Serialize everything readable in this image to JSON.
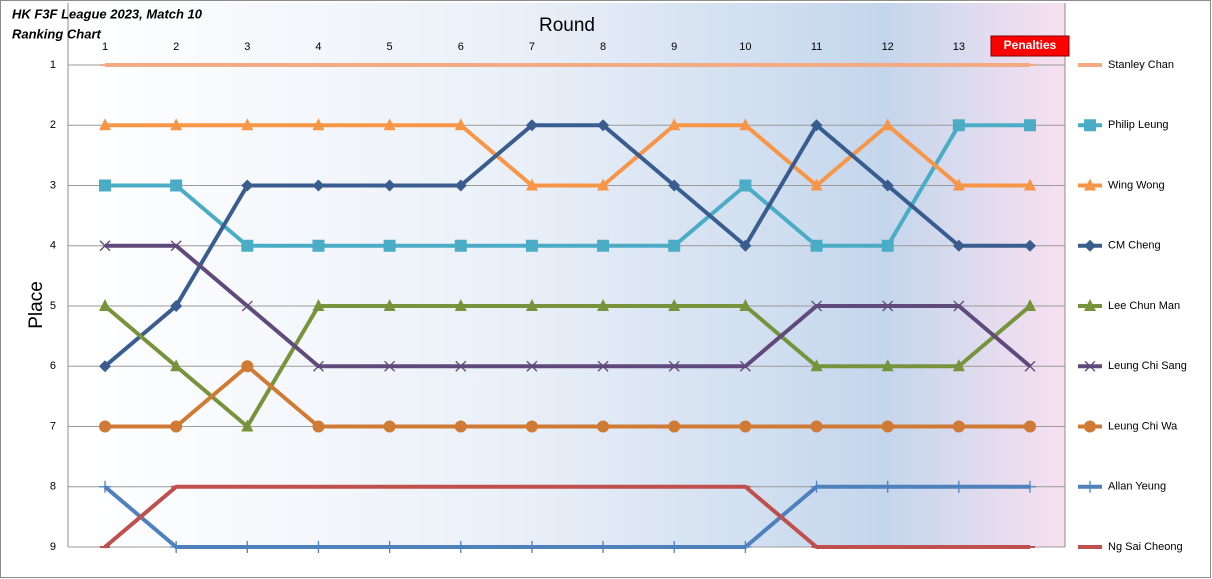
{
  "chart_data": {
    "type": "line",
    "title": "HK F3F League 2023, Match 10",
    "subtitle": "Ranking Chart",
    "x_label": "Round",
    "y_label": "Place",
    "categories": [
      "1",
      "2",
      "3",
      "4",
      "5",
      "6",
      "7",
      "8",
      "9",
      "10",
      "11",
      "12",
      "13",
      "Penalties"
    ],
    "ylim": [
      1,
      9
    ],
    "y_reversed": true,
    "yticks": [
      1,
      2,
      3,
      4,
      5,
      6,
      7,
      8,
      9
    ],
    "grid": true,
    "legend": "right",
    "series": [
      {
        "name": "Stanley Chan",
        "color": "#f4ab84",
        "marker": "dash",
        "values": [
          1,
          1,
          1,
          1,
          1,
          1,
          1,
          1,
          1,
          1,
          1,
          1,
          1,
          1
        ]
      },
      {
        "name": "Philip Leung",
        "color": "#4bacc6",
        "marker": "square",
        "values": [
          3,
          3,
          4,
          4,
          4,
          4,
          4,
          4,
          4,
          3,
          4,
          4,
          2,
          2
        ]
      },
      {
        "name": "Wing Wong",
        "color": "#f79646",
        "marker": "triangle",
        "values": [
          2,
          2,
          2,
          2,
          2,
          2,
          3,
          3,
          2,
          2,
          3,
          2,
          3,
          3
        ]
      },
      {
        "name": "CM Cheng",
        "color": "#3a5d8f",
        "marker": "diamond",
        "values": [
          6,
          5,
          3,
          3,
          3,
          3,
          2,
          2,
          3,
          4,
          2,
          3,
          4,
          4
        ]
      },
      {
        "name": "Lee Chun Man",
        "color": "#77933c",
        "marker": "triangle",
        "values": [
          5,
          6,
          7,
          5,
          5,
          5,
          5,
          5,
          5,
          5,
          6,
          6,
          6,
          5
        ]
      },
      {
        "name": "Leung Chi Sang",
        "color": "#604a7b",
        "marker": "x",
        "values": [
          4,
          4,
          5,
          6,
          6,
          6,
          6,
          6,
          6,
          6,
          5,
          5,
          5,
          6
        ]
      },
      {
        "name": "Leung Chi Wa",
        "color": "#d07b35",
        "marker": "circle",
        "values": [
          7,
          7,
          6,
          7,
          7,
          7,
          7,
          7,
          7,
          7,
          7,
          7,
          7,
          7
        ]
      },
      {
        "name": "Allan Yeung",
        "color": "#4f81bd",
        "marker": "plus",
        "values": [
          8,
          9,
          9,
          9,
          9,
          9,
          9,
          9,
          9,
          9,
          8,
          8,
          8,
          8
        ]
      },
      {
        "name": "Ng Sai Cheong",
        "color": "#c0504d",
        "marker": "dash",
        "values": [
          9,
          8,
          8,
          8,
          8,
          8,
          8,
          8,
          8,
          8,
          9,
          9,
          9,
          9
        ]
      }
    ]
  }
}
